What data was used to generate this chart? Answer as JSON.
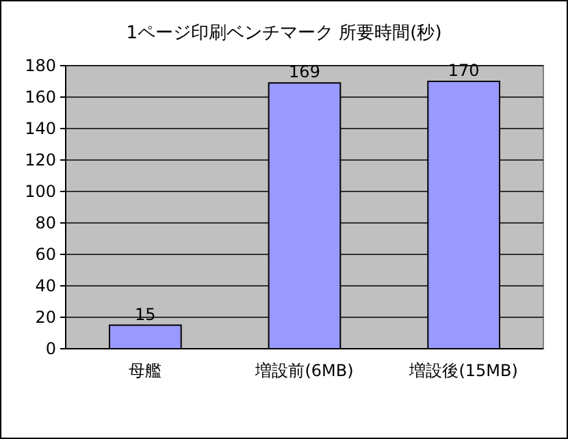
{
  "chart_data": {
    "type": "bar",
    "title": "1ページ印刷ベンチマーク 所要時間(秒)",
    "categories": [
      "母艦",
      "増設前(6MB)",
      "増設後(15MB)"
    ],
    "values": [
      15,
      169,
      170
    ],
    "color": "#9999ff",
    "ylim": [
      0,
      180
    ],
    "yticks": [
      0,
      20,
      40,
      60,
      80,
      100,
      120,
      140,
      160,
      180
    ],
    "grid": "y",
    "data_labels": true
  }
}
